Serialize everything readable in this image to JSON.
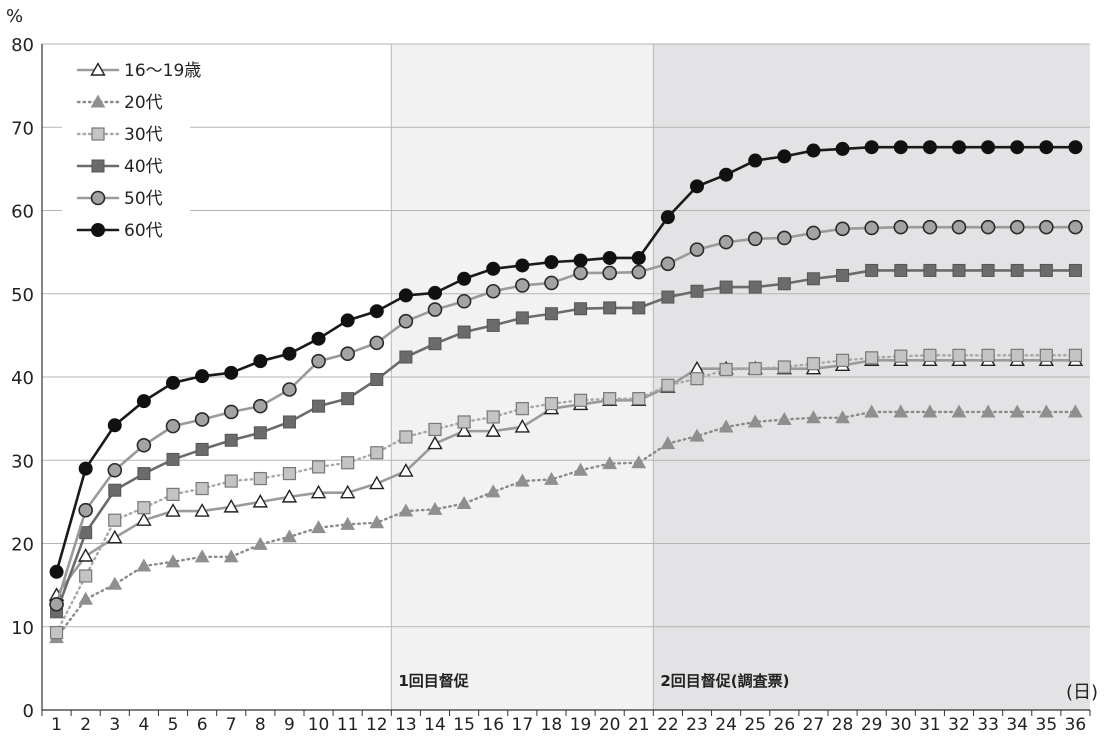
{
  "chart_data": {
    "type": "line",
    "y_unit_label": "%",
    "x_unit_label": "(日)",
    "ylim": [
      0,
      80
    ],
    "y_ticks": [
      0,
      10,
      20,
      30,
      40,
      50,
      60,
      70,
      80
    ],
    "x": [
      1,
      2,
      3,
      4,
      5,
      6,
      7,
      8,
      9,
      10,
      11,
      12,
      13,
      14,
      15,
      16,
      17,
      18,
      19,
      20,
      21,
      22,
      23,
      24,
      25,
      26,
      27,
      28,
      29,
      30,
      31,
      32,
      33,
      34,
      35,
      36
    ],
    "grid": "horizontal",
    "legend_position": "top-left",
    "shaded_regions": [
      {
        "label": "1回目督促",
        "from_day": 13,
        "to_day": 21,
        "color": "#f2f2f3"
      },
      {
        "label": "2回目督促(調査票)",
        "from_day": 22,
        "to_day": 36,
        "color": "#e3e3e5"
      }
    ],
    "series": [
      {
        "name": "16〜19歳",
        "color": "#9a9a9a",
        "line_style": "solid",
        "marker": "triangle-hollow",
        "values": [
          13.8,
          18.5,
          20.7,
          22.8,
          23.9,
          23.9,
          24.4,
          25.0,
          25.6,
          26.1,
          26.1,
          27.2,
          28.7,
          32.0,
          33.5,
          33.5,
          34.0,
          36.2,
          36.7,
          37.2,
          37.2,
          38.8,
          41.0,
          41.0,
          41.0,
          41.0,
          41.0,
          41.4,
          42.0,
          42.0,
          42.0,
          42.0,
          42.0,
          42.0,
          42.0,
          42.0
        ]
      },
      {
        "name": "20代",
        "color": "#8a8a8a",
        "line_style": "dotted",
        "marker": "triangle-filled",
        "values": [
          8.7,
          13.3,
          15.1,
          17.3,
          17.8,
          18.4,
          18.4,
          19.9,
          20.8,
          21.9,
          22.3,
          22.5,
          23.9,
          24.1,
          24.8,
          26.2,
          27.5,
          27.7,
          28.8,
          29.6,
          29.7,
          32.0,
          32.9,
          34.0,
          34.6,
          34.9,
          35.1,
          35.1,
          35.8,
          35.8,
          35.8,
          35.8,
          35.8,
          35.8,
          35.8,
          35.8
        ]
      },
      {
        "name": "30代",
        "color": "#a8a8a8",
        "line_style": "dotted",
        "marker": "square-light",
        "values": [
          9.3,
          16.1,
          22.8,
          24.3,
          25.9,
          26.6,
          27.5,
          27.8,
          28.4,
          29.2,
          29.7,
          30.9,
          32.8,
          33.7,
          34.6,
          35.2,
          36.2,
          36.8,
          37.2,
          37.4,
          37.4,
          39.0,
          39.8,
          40.9,
          41.0,
          41.2,
          41.6,
          42.0,
          42.3,
          42.5,
          42.6,
          42.6,
          42.6,
          42.6,
          42.6,
          42.6
        ]
      },
      {
        "name": "40代",
        "color": "#6b6b6b",
        "line_style": "solid",
        "marker": "square-dark",
        "values": [
          11.8,
          21.3,
          26.4,
          28.4,
          30.1,
          31.3,
          32.4,
          33.3,
          34.6,
          36.5,
          37.4,
          39.7,
          42.4,
          44.0,
          45.4,
          46.2,
          47.1,
          47.6,
          48.2,
          48.3,
          48.3,
          49.6,
          50.3,
          50.8,
          50.8,
          51.2,
          51.8,
          52.2,
          52.8,
          52.8,
          52.8,
          52.8,
          52.8,
          52.8,
          52.8,
          52.8
        ]
      },
      {
        "name": "50代",
        "color": "#9a9a9a",
        "line_style": "solid",
        "marker": "circle-gray",
        "values": [
          12.7,
          24.0,
          28.8,
          31.8,
          34.1,
          34.9,
          35.8,
          36.5,
          38.5,
          41.9,
          42.8,
          44.1,
          46.7,
          48.1,
          49.1,
          50.3,
          51.0,
          51.3,
          52.5,
          52.5,
          52.6,
          53.6,
          55.3,
          56.2,
          56.6,
          56.7,
          57.3,
          57.8,
          57.9,
          58.0,
          58.0,
          58.0,
          58.0,
          58.0,
          58.0,
          58.0
        ]
      },
      {
        "name": "60代",
        "color": "#1a1a1a",
        "line_style": "solid",
        "marker": "circle-black",
        "values": [
          16.6,
          29.0,
          34.2,
          37.1,
          39.3,
          40.1,
          40.5,
          41.9,
          42.8,
          44.6,
          46.8,
          47.9,
          49.8,
          50.1,
          51.8,
          53.0,
          53.4,
          53.8,
          54.0,
          54.3,
          54.3,
          59.2,
          62.9,
          64.3,
          66.0,
          66.5,
          67.2,
          67.4,
          67.6,
          67.6,
          67.6,
          67.6,
          67.6,
          67.6,
          67.6,
          67.6
        ]
      }
    ]
  }
}
